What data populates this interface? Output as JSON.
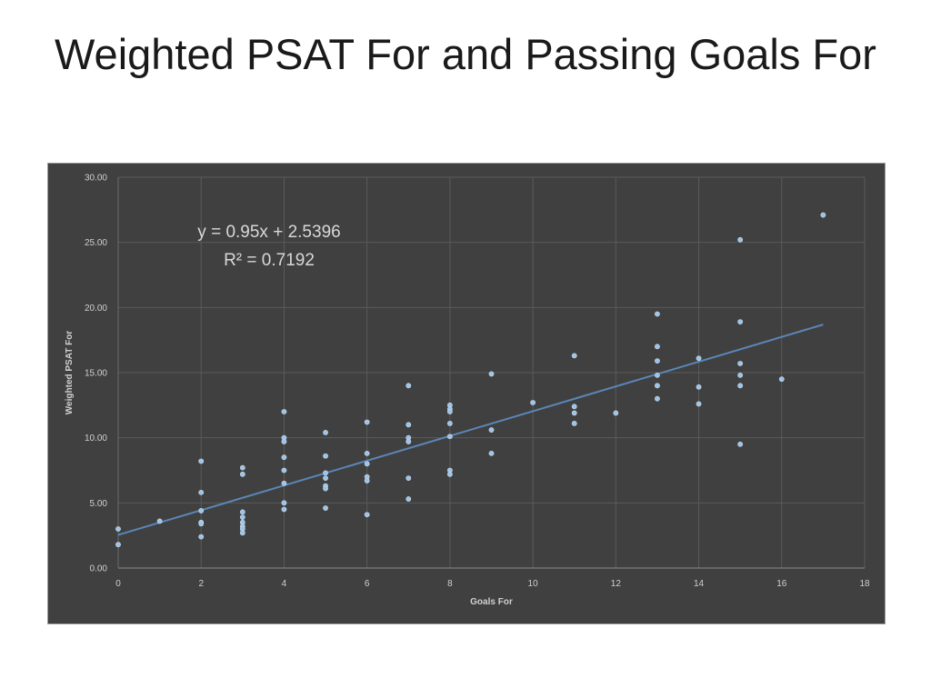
{
  "slide": {
    "title": "Weighted PSAT For and Passing Goals For"
  },
  "chart_data": {
    "type": "scatter",
    "title": "",
    "xlabel": "Goals For",
    "ylabel": "Weighted PSAT For",
    "xlim": [
      0,
      18
    ],
    "ylim": [
      0,
      30
    ],
    "xticks": [
      0,
      2,
      4,
      6,
      8,
      10,
      12,
      14,
      16,
      18
    ],
    "xtick_labels": [
      "0",
      "2",
      "4",
      "6",
      "8",
      "10",
      "12",
      "14",
      "16",
      "18"
    ],
    "yticks": [
      0,
      5,
      10,
      15,
      20,
      25,
      30
    ],
    "ytick_labels": [
      "0.00",
      "5.00",
      "10.00",
      "15.00",
      "20.00",
      "25.00",
      "30.00"
    ],
    "grid": true,
    "legend": "none",
    "colors": {
      "background": "#404040",
      "marker": "#9dc3e6",
      "trendline": "#5b86b8",
      "grid": "#5a5a5a"
    },
    "trendline": {
      "type": "linear",
      "slope": 0.95,
      "intercept": 2.5396,
      "x_range": [
        0,
        17
      ],
      "equation": "y = 0.95x + 2.5396",
      "r_squared": "R² = 0.7192"
    },
    "points": [
      [
        0,
        3.0
      ],
      [
        0,
        1.8
      ],
      [
        1,
        3.6
      ],
      [
        2,
        8.2
      ],
      [
        2,
        5.8
      ],
      [
        2,
        4.4
      ],
      [
        2,
        3.5
      ],
      [
        2,
        3.4
      ],
      [
        2,
        2.4
      ],
      [
        3,
        7.7
      ],
      [
        3,
        7.2
      ],
      [
        3,
        4.3
      ],
      [
        3,
        3.9
      ],
      [
        3,
        3.5
      ],
      [
        3,
        3.2
      ],
      [
        3,
        3.0
      ],
      [
        3,
        2.7
      ],
      [
        4,
        12.0
      ],
      [
        4,
        10.0
      ],
      [
        4,
        9.7
      ],
      [
        4,
        8.5
      ],
      [
        4,
        7.5
      ],
      [
        4,
        6.5
      ],
      [
        4,
        5.0
      ],
      [
        4,
        4.5
      ],
      [
        5,
        10.4
      ],
      [
        5,
        8.6
      ],
      [
        5,
        7.3
      ],
      [
        5,
        6.9
      ],
      [
        5,
        6.3
      ],
      [
        5,
        6.1
      ],
      [
        5,
        4.6
      ],
      [
        6,
        11.2
      ],
      [
        6,
        8.8
      ],
      [
        6,
        8.0
      ],
      [
        6,
        7.0
      ],
      [
        6,
        6.7
      ],
      [
        6,
        4.1
      ],
      [
        7,
        14.0
      ],
      [
        7,
        11.0
      ],
      [
        7,
        10.0
      ],
      [
        7,
        9.7
      ],
      [
        7,
        6.9
      ],
      [
        7,
        5.3
      ],
      [
        8,
        12.5
      ],
      [
        8,
        12.2
      ],
      [
        8,
        12.0
      ],
      [
        8,
        11.1
      ],
      [
        8,
        10.1
      ],
      [
        8,
        7.5
      ],
      [
        8,
        7.2
      ],
      [
        9,
        14.9
      ],
      [
        9,
        10.6
      ],
      [
        9,
        8.8
      ],
      [
        10,
        12.7
      ],
      [
        11,
        16.3
      ],
      [
        11,
        12.4
      ],
      [
        11,
        11.9
      ],
      [
        11,
        11.1
      ],
      [
        12,
        11.9
      ],
      [
        13,
        19.5
      ],
      [
        13,
        17.0
      ],
      [
        13,
        15.9
      ],
      [
        13,
        14.8
      ],
      [
        13,
        14.0
      ],
      [
        13,
        13.0
      ],
      [
        14,
        16.1
      ],
      [
        14,
        13.9
      ],
      [
        14,
        12.6
      ],
      [
        15,
        25.2
      ],
      [
        15,
        18.9
      ],
      [
        15,
        15.7
      ],
      [
        15,
        14.8
      ],
      [
        15,
        14.0
      ],
      [
        15,
        9.5
      ],
      [
        16,
        14.5
      ],
      [
        17,
        27.1
      ]
    ]
  }
}
